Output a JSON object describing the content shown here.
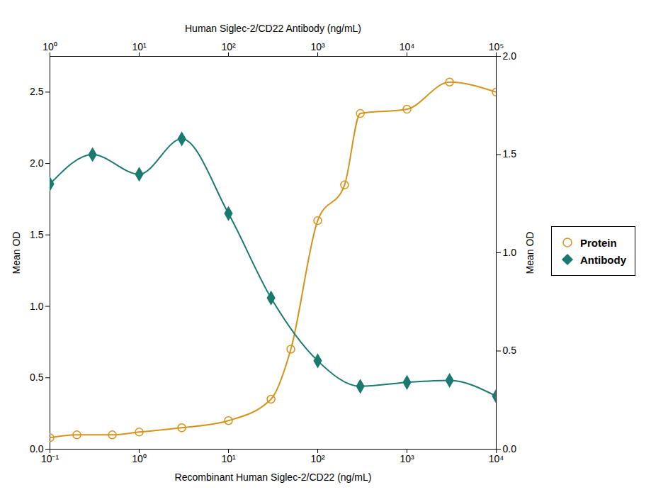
{
  "chart_data": {
    "type": "line",
    "xlabel": "Recombinant Human Siglec-2/CD22 (ng/mL)",
    "x2label": "Human Siglec-2/CD22 Antibody (ng/mL)",
    "ylabel": "Mean OD",
    "y2label": "Mean OD",
    "log": "x",
    "xlim": [
      0.1,
      10000
    ],
    "xticks": [
      {
        "value": 0.1,
        "label": "10⁻¹"
      },
      {
        "value": 1,
        "label": "10⁰"
      },
      {
        "value": 10,
        "label": "10¹"
      },
      {
        "value": 100,
        "label": "10²"
      },
      {
        "value": 1000,
        "label": "10³"
      },
      {
        "value": 10000,
        "label": "10⁴"
      }
    ],
    "x2lim": [
      1,
      100000
    ],
    "x2ticks": [
      {
        "value": 1,
        "label": "10⁰"
      },
      {
        "value": 10,
        "label": "10¹"
      },
      {
        "value": 100,
        "label": "10²"
      },
      {
        "value": 1000,
        "label": "10³"
      },
      {
        "value": 10000,
        "label": "10⁴"
      },
      {
        "value": 100000,
        "label": "10⁵"
      }
    ],
    "ylim": [
      0.0,
      2.75
    ],
    "yticks": [
      {
        "value": 0.0,
        "label": "0.0"
      },
      0.5,
      {
        "value": 1.0,
        "label": "1.0"
      },
      1.5,
      {
        "value": 2.0,
        "label": "2.0"
      },
      2.5
    ],
    "y2lim": [
      0.0,
      2.0
    ],
    "y2ticks": [
      {
        "value": 0.0,
        "label": "0.0"
      },
      0.5,
      {
        "value": 1.0,
        "label": "1.0"
      },
      1.5,
      {
        "value": 2.0,
        "label": "2.0"
      }
    ],
    "grid": false,
    "legend": "right",
    "series": [
      {
        "name": "Protein",
        "color": "#D4941A",
        "marker": "circle",
        "line_style": "solid",
        "x": [
          0.1,
          0.2,
          0.5,
          1.0,
          3.0,
          10.0,
          30.0,
          50.0,
          100.0,
          200.0,
          300.0,
          1000.0,
          3000.0,
          10000.0
        ],
        "values": [
          0.08,
          0.1,
          0.1,
          0.12,
          0.15,
          0.2,
          0.35,
          0.7,
          1.6,
          1.85,
          2.35,
          2.38,
          2.57,
          2.5
        ]
      },
      {
        "name": "Antibody",
        "color": "#1A7A6E",
        "marker": "diamond",
        "line_style": "solid",
        "axis": "y2",
        "x": [
          1.0,
          3.0,
          10.0,
          30.0,
          100.0,
          300.0,
          1000.0,
          3000.0,
          10000.0,
          30000.0,
          100000.0
        ],
        "values": [
          1.35,
          1.5,
          1.4,
          1.58,
          1.2,
          0.77,
          0.45,
          0.32,
          0.34,
          0.35,
          0.27
        ]
      }
    ]
  }
}
